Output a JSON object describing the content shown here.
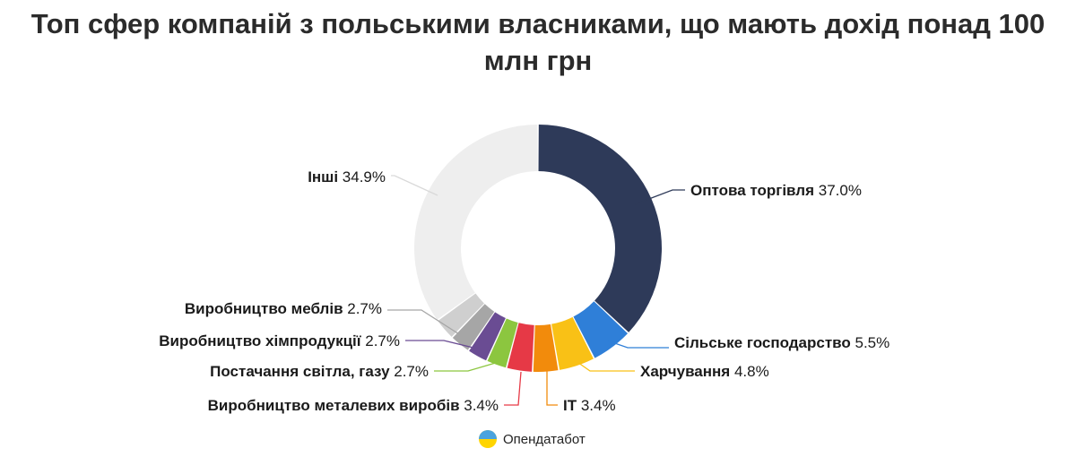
{
  "title": "Топ сфер компаній з польськими власниками, що мають дохід понад 100 млн грн",
  "credit": "Опендатабот",
  "chart_data": {
    "type": "pie",
    "donut": true,
    "legend": "none",
    "slices": [
      {
        "label": "Оптова торгівля",
        "value": 37.0,
        "display": "37.0%",
        "color": "#2e3a59"
      },
      {
        "label": "Сільське господарство",
        "value": 5.5,
        "display": "5.5%",
        "color": "#2f7fd8"
      },
      {
        "label": "Харчування",
        "value": 4.8,
        "display": "4.8%",
        "color": "#f9c116"
      },
      {
        "label": "IT",
        "value": 3.4,
        "display": "3.4%",
        "color": "#f28b0c"
      },
      {
        "label": "Виробництво металевих виробів",
        "value": 3.4,
        "display": "3.4%",
        "color": "#e63946"
      },
      {
        "label": "Постачання світла, газу",
        "value": 2.7,
        "display": "2.7%",
        "color": "#8cc63f"
      },
      {
        "label": "Виробництво хімпродукції",
        "value": 2.7,
        "display": "2.7%",
        "color": "#6a4c93"
      },
      {
        "label": "Виробництво меблів",
        "value": 2.7,
        "display": "2.7%",
        "color": "#a6a6a6"
      },
      {
        "label": "",
        "value": 2.9,
        "display": "",
        "color": "#cfcfcf"
      },
      {
        "label": "Інші",
        "value": 34.9,
        "display": "34.9%",
        "color": "#eeeeee"
      }
    ]
  }
}
